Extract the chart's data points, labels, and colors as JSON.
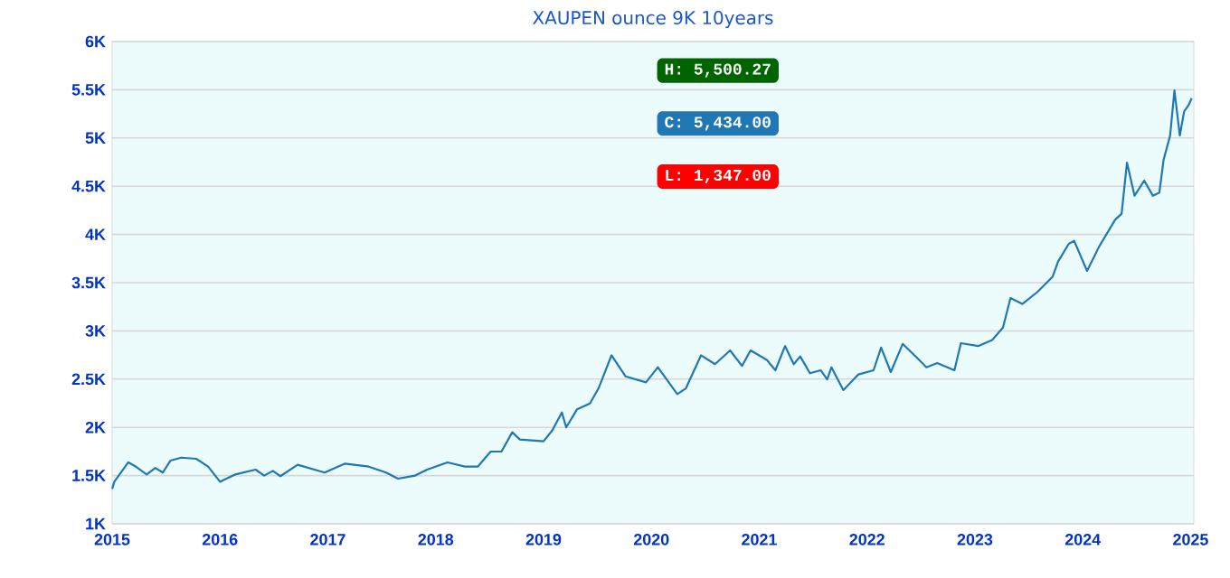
{
  "chart_data": {
    "type": "line",
    "title": "XAUPEN ounce 9K 10years",
    "annotations": [
      "H: 5,500.27",
      "C: 5,434.00",
      "L: 1,347.00"
    ],
    "series": [
      {
        "color": "#1f77b4",
        "x": [
          2015.0,
          2015.02,
          2015.15,
          2015.21,
          2015.32,
          2015.4,
          2015.47,
          2015.54,
          2015.64,
          2015.78,
          2015.89,
          2016.0,
          2016.14,
          2016.33,
          2016.41,
          2016.49,
          2016.56,
          2016.72,
          2016.97,
          2017.16,
          2017.38,
          2017.54,
          2017.65,
          2017.81,
          2017.92,
          2018.11,
          2018.27,
          2018.39,
          2018.51,
          2018.61,
          2018.71,
          2018.78,
          2019.0,
          2019.08,
          2019.17,
          2019.21,
          2019.31,
          2019.43,
          2019.51,
          2019.63,
          2019.76,
          2019.95,
          2020.06,
          2020.24,
          2020.32,
          2020.46,
          2020.59,
          2020.73,
          2020.84,
          2020.92,
          2021.07,
          2021.15,
          2021.24,
          2021.32,
          2021.38,
          2021.47,
          2021.57,
          2021.63,
          2021.67,
          2021.78,
          2021.92,
          2022.06,
          2022.13,
          2022.22,
          2022.33,
          2022.44,
          2022.55,
          2022.65,
          2022.81,
          2022.87,
          2023.03,
          2023.16,
          2023.26,
          2023.33,
          2023.44,
          2023.58,
          2023.72,
          2023.77,
          2023.87,
          2023.92,
          2024.04,
          2024.15,
          2024.3,
          2024.36,
          2024.41,
          2024.48,
          2024.57,
          2024.65,
          2024.71,
          2024.75,
          2024.81,
          2024.85,
          2024.9,
          2024.94,
          2024.98,
          2025.01
        ],
        "values": [
          1362,
          1436,
          1637,
          1600,
          1511,
          1580,
          1531,
          1655,
          1686,
          1674,
          1593,
          1436,
          1511,
          1562,
          1500,
          1549,
          1494,
          1612,
          1531,
          1624,
          1593,
          1531,
          1468,
          1500,
          1562,
          1637,
          1593,
          1593,
          1749,
          1749,
          1949,
          1874,
          1855,
          1967,
          2155,
          1999,
          2186,
          2248,
          2404,
          2747,
          2529,
          2467,
          2623,
          2344,
          2404,
          2747,
          2655,
          2798,
          2637,
          2798,
          2699,
          2592,
          2843,
          2655,
          2736,
          2561,
          2592,
          2498,
          2623,
          2386,
          2549,
          2592,
          2827,
          2573,
          2865,
          2747,
          2623,
          2667,
          2592,
          2873,
          2843,
          2905,
          3034,
          3341,
          3279,
          3404,
          3560,
          3716,
          3903,
          3934,
          3622,
          3871,
          4152,
          4215,
          4745,
          4402,
          4558,
          4402,
          4434,
          4777,
          5026,
          5494,
          5026,
          5275,
          5338,
          5412
        ]
      }
    ],
    "xlim": [
      2015,
      2025.03
    ],
    "xticks": [
      2015,
      2016,
      2017,
      2018,
      2019,
      2020,
      2021,
      2022,
      2023,
      2024,
      2025
    ],
    "ylim": [
      1000,
      6000
    ],
    "yticks": [
      {
        "value": 1000,
        "label": "1K"
      },
      {
        "value": 1500,
        "label": "1.5K"
      },
      {
        "value": 2000,
        "label": "2K"
      },
      {
        "value": 2500,
        "label": "2.5K"
      },
      {
        "value": 3000,
        "label": "3K"
      },
      {
        "value": 3500,
        "label": "3.5K"
      },
      {
        "value": 4000,
        "label": "4K"
      },
      {
        "value": 4500,
        "label": "4.5K"
      },
      {
        "value": 5000,
        "label": "5K"
      },
      {
        "value": 5500,
        "label": "5.5K"
      },
      {
        "value": 6000,
        "label": "6K"
      }
    ],
    "grid": "y",
    "legend": false,
    "marker": "none",
    "line_style": "solid"
  }
}
